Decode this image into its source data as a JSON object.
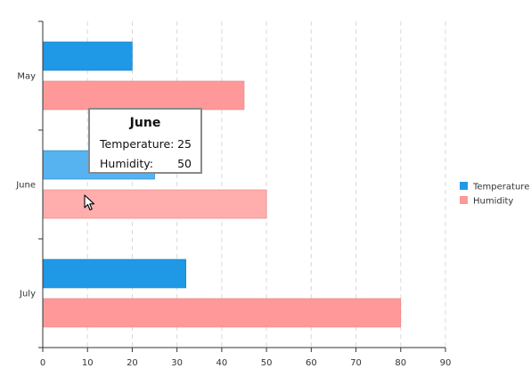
{
  "chart_data": {
    "type": "bar",
    "orientation": "horizontal",
    "categories": [
      "May",
      "June",
      "July"
    ],
    "series": [
      {
        "name": "Temperature",
        "values": [
          20,
          25,
          32
        ],
        "color": "#1f99e6"
      },
      {
        "name": "Humidity",
        "values": [
          45,
          50,
          80
        ],
        "color": "#ff9999"
      }
    ],
    "highlighted_category": "June",
    "highlight_colors": {
      "Temperature": "#56b3ef",
      "Humidity": "#ffadad"
    },
    "xlim": [
      0,
      90
    ],
    "xticks": [
      0,
      10,
      20,
      30,
      40,
      50,
      60,
      70,
      80,
      90
    ],
    "grid": "vertical-dashed",
    "legend_position": "right"
  },
  "tooltip": {
    "title": "June",
    "rows": [
      {
        "label": "Temperature:",
        "value": "25"
      },
      {
        "label": "Humidity:",
        "value": "50"
      }
    ]
  },
  "cursor_icon": "mouse-pointer-icon"
}
